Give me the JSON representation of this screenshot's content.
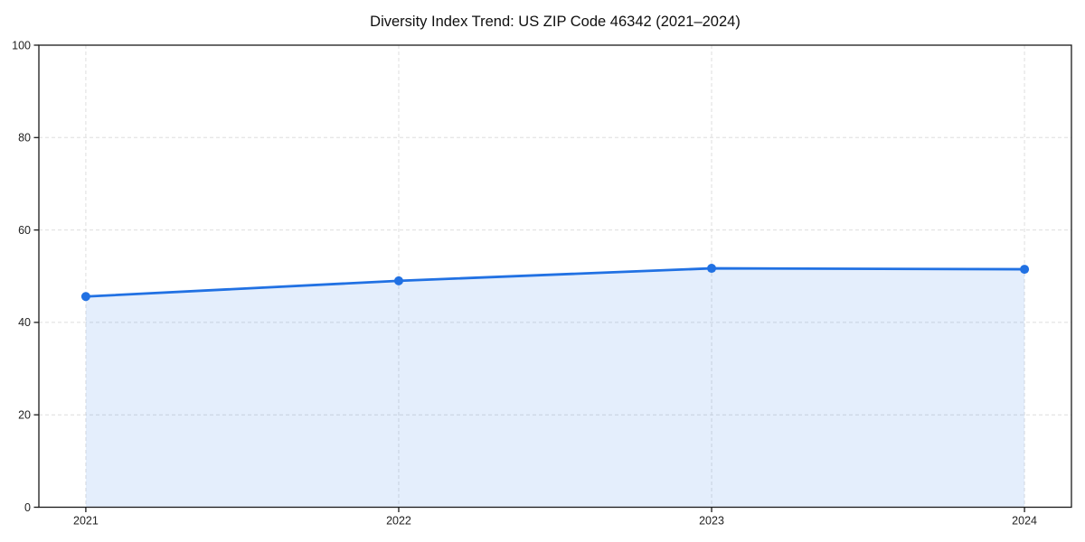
{
  "page": {
    "background_color": "#ffffff"
  },
  "chart_data": {
    "type": "line",
    "style": "line-with-area-fill-and-markers",
    "title": "Diversity Index Trend: US ZIP Code 46342 (2021–2024)",
    "categories": [
      "2021",
      "2022",
      "2023",
      "2024"
    ],
    "series": [
      {
        "name": "Diversity Index",
        "values": [
          45.6,
          49.0,
          51.7,
          51.5
        ]
      }
    ],
    "xlabel": "",
    "ylabel": "",
    "ylim": [
      0,
      100
    ],
    "y_ticks": [
      0,
      20,
      40,
      60,
      80,
      100
    ],
    "grid": true,
    "grid_style": "dashed",
    "legend": "none",
    "colors": {
      "line": "#2171e3",
      "marker": "#2171e3",
      "area_fill": "rgba(33, 113, 227, 0.12)",
      "grid_line": "#dedede",
      "axis_spine": "#1a1a1a",
      "tick_label": "#222222",
      "title": "#0f0f0f"
    }
  }
}
